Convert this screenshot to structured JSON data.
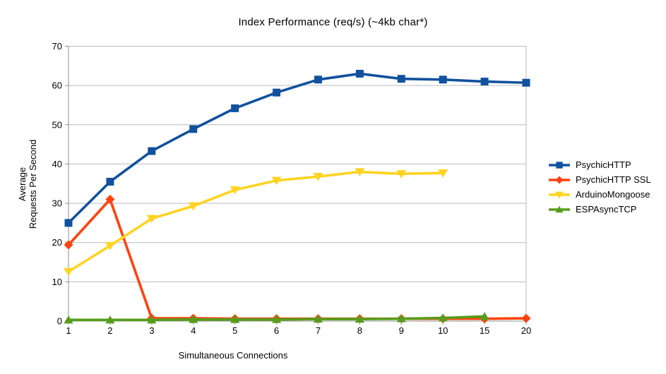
{
  "chart_data": {
    "type": "line",
    "title": "Index Performance (req/s) (~4kb char*)",
    "xlabel": "Simultaneous Connections",
    "ylabel": "Average\nRequests Per Second",
    "categories": [
      "1",
      "2",
      "3",
      "4",
      "5",
      "6",
      "7",
      "8",
      "9",
      "10",
      "15",
      "20"
    ],
    "ylim": [
      0,
      70
    ],
    "ytick_step": 10,
    "grid": "horizontal",
    "grid_color": "#bcbcbc",
    "axis_color": "#8f8f8f",
    "text_color": "#000000",
    "legend_position": "right",
    "series": [
      {
        "name": "PsychicHTTP",
        "color": "#11519e",
        "marker": "square",
        "values": [
          25.0,
          35.5,
          43.3,
          48.9,
          54.2,
          58.2,
          61.5,
          63.0,
          61.7,
          61.5,
          61.0,
          60.7
        ]
      },
      {
        "name": "PsychicHTTP SSL",
        "color": "#ff420e",
        "marker": "diamond",
        "values": [
          19.4,
          31.0,
          0.7,
          0.7,
          0.6,
          0.6,
          0.6,
          0.6,
          0.6,
          0.6,
          0.6,
          0.7
        ]
      },
      {
        "name": "ArduinoMongoose",
        "color": "#ffd320",
        "marker": "triangle-down",
        "values": [
          12.6,
          19.2,
          26.1,
          29.3,
          33.4,
          35.8,
          36.8,
          38.0,
          37.5,
          37.7
        ]
      },
      {
        "name": "ESPAsyncTCP",
        "color": "#579d1c",
        "marker": "triangle-up",
        "values": [
          0.3,
          0.3,
          0.3,
          0.4,
          0.4,
          0.4,
          0.5,
          0.5,
          0.6,
          0.8,
          1.2
        ]
      }
    ]
  }
}
